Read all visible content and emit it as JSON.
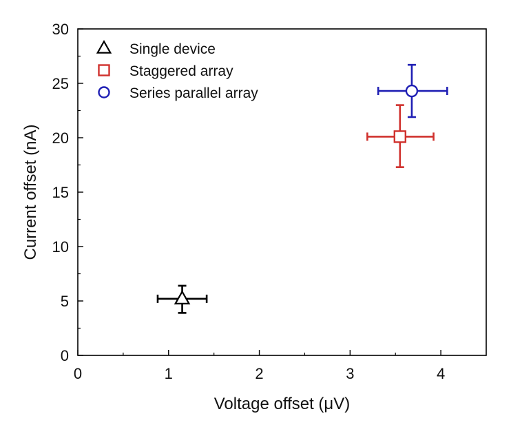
{
  "chart_data": {
    "type": "scatter",
    "title": "",
    "xlabel": "Voltage offset (μV)",
    "ylabel": "Current offset (nA)",
    "xlim": [
      0,
      4.5
    ],
    "ylim": [
      0,
      30
    ],
    "x_ticks": [
      "0",
      "1",
      "2",
      "3",
      "4"
    ],
    "y_ticks": [
      "0",
      "5",
      "10",
      "15",
      "20",
      "25",
      "30"
    ],
    "grid": false,
    "legend_position": "top-left",
    "series": [
      {
        "name": "Single device",
        "marker": "triangle",
        "color": "#000000",
        "x": 1.15,
        "y": 5.2,
        "x_err": [
          0.88,
          1.42
        ],
        "y_err": [
          3.9,
          6.4
        ]
      },
      {
        "name": "Staggered array",
        "marker": "square",
        "color": "#d0312d",
        "x": 3.55,
        "y": 20.1,
        "x_err": [
          3.19,
          3.92
        ],
        "y_err": [
          17.3,
          23.0
        ]
      },
      {
        "name": "Series parallel array",
        "marker": "circle",
        "color": "#1f1fb4",
        "x": 3.68,
        "y": 24.3,
        "x_err": [
          3.31,
          4.07
        ],
        "y_err": [
          21.9,
          26.7
        ]
      }
    ]
  }
}
